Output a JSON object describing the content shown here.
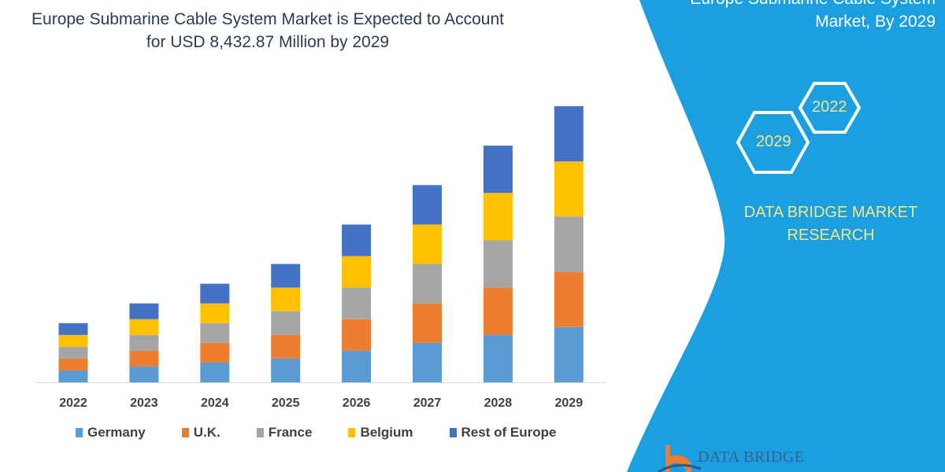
{
  "header": {
    "title_line1": "Europe Submarine Cable System Market is Expected to Account",
    "title_line2": "for USD 8,432.87 Million by 2029"
  },
  "side_panel": {
    "title_line1": "Europe Submarine Cable System",
    "title_line2": "Market, By 2029",
    "hex_years": [
      "2022",
      "2029"
    ],
    "brand_line1": "DATA BRIDGE MARKET",
    "brand_line2": "RESEARCH",
    "logo_text": "DATA BRIDGE",
    "panel_color": "#1a9fe0",
    "accent_text_color": "#f2e58a"
  },
  "chart_data": {
    "type": "bar",
    "stacked": true,
    "title": "Europe Submarine Cable System Market is Expected to Account for USD 8,432.87 Million by 2029",
    "xlabel": "",
    "ylabel": "",
    "y_axis_shown": false,
    "grid": false,
    "legend_placement": "bottom",
    "ylim": [
      0,
      350
    ],
    "categories": [
      "2022",
      "2023",
      "2024",
      "2025",
      "2026",
      "2027",
      "2028",
      "2029"
    ],
    "series": [
      {
        "name": "Germany",
        "color": "#5b9bd5",
        "values": [
          15,
          20,
          25,
          30,
          40,
          50,
          60,
          70
        ]
      },
      {
        "name": "U.K.",
        "color": "#ed7d31",
        "values": [
          15,
          20,
          25,
          30,
          40,
          50,
          60,
          70
        ]
      },
      {
        "name": "France",
        "color": "#a5a5a5",
        "values": [
          15,
          20,
          25,
          30,
          40,
          50,
          60,
          70
        ]
      },
      {
        "name": "Belgium",
        "color": "#ffc000",
        "values": [
          15,
          20,
          25,
          30,
          40,
          50,
          60,
          70
        ]
      },
      {
        "name": "Rest of Europe",
        "color": "#4472c4",
        "values": [
          15,
          20,
          25,
          30,
          40,
          50,
          60,
          70
        ]
      }
    ]
  }
}
